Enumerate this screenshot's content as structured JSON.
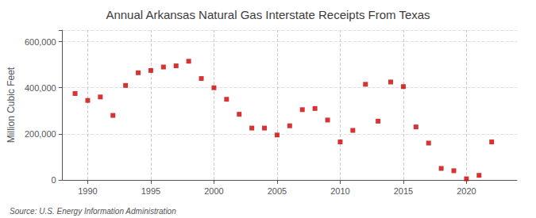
{
  "chart_data": {
    "type": "scatter",
    "title": "Annual Arkansas Natural Gas Interstate Receipts From Texas",
    "ylabel": "Million Cubic Feet",
    "annotations": [
      "Source: U.S. Energy Information Administration"
    ],
    "x": [
      1989,
      1990,
      1991,
      1992,
      1993,
      1994,
      1995,
      1996,
      1997,
      1998,
      1999,
      2000,
      2001,
      2002,
      2003,
      2004,
      2005,
      2006,
      2007,
      2008,
      2009,
      2010,
      2011,
      2012,
      2013,
      2014,
      2015,
      2016,
      2017,
      2018,
      2019,
      2020,
      2021,
      2022
    ],
    "values": [
      375000,
      345000,
      360000,
      280000,
      410000,
      465000,
      475000,
      490000,
      495000,
      515000,
      440000,
      400000,
      350000,
      285000,
      225000,
      225000,
      195000,
      235000,
      305000,
      310000,
      260000,
      165000,
      215000,
      415000,
      255000,
      425000,
      405000,
      230000,
      160000,
      50000,
      40000,
      5000,
      20000,
      165000
    ],
    "color": "#cc0000",
    "marker": "square",
    "xlim": [
      1988,
      2024
    ],
    "xticks": [
      1990,
      1995,
      2000,
      2005,
      2010,
      2015,
      2020
    ],
    "ylim": [
      0,
      650000
    ],
    "yticks": [
      0,
      {
        "value": 200000,
        "label": "200,000"
      },
      {
        "value": 400000,
        "label": "400,000"
      },
      {
        "value": 600000,
        "label": "600,000"
      }
    ],
    "grid": true
  }
}
